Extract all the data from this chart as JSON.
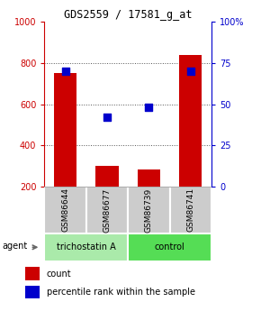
{
  "title": "GDS2559 / 17581_g_at",
  "samples": [
    "GSM86644",
    "GSM86677",
    "GSM86739",
    "GSM86741"
  ],
  "counts": [
    750,
    300,
    285,
    840
  ],
  "percentiles": [
    70,
    42,
    48,
    70
  ],
  "left_ylim": [
    200,
    1000
  ],
  "right_ylim": [
    0,
    100
  ],
  "left_yticks": [
    200,
    400,
    600,
    800,
    1000
  ],
  "right_yticks": [
    0,
    25,
    50,
    75,
    100
  ],
  "right_yticklabels": [
    "0",
    "25",
    "50",
    "75",
    "100%"
  ],
  "groups": [
    {
      "label": "trichostatin A",
      "indices": [
        0,
        1
      ],
      "color": "#90ee90"
    },
    {
      "label": "control",
      "indices": [
        2,
        3
      ],
      "color": "#66dd66"
    }
  ],
  "bar_color": "#cc0000",
  "dot_color": "#0000cc",
  "bar_width": 0.55,
  "dot_size": 40,
  "grid_color": "#555555",
  "bg_plot": "#ffffff",
  "bg_sample": "#cccccc",
  "bg_group_left": "#aaeaaa",
  "bg_group_right": "#55dd55",
  "agent_label": "agent",
  "legend_count_label": "count",
  "legend_pct_label": "percentile rank within the sample",
  "left_axis_color": "#cc0000",
  "right_axis_color": "#0000cc"
}
